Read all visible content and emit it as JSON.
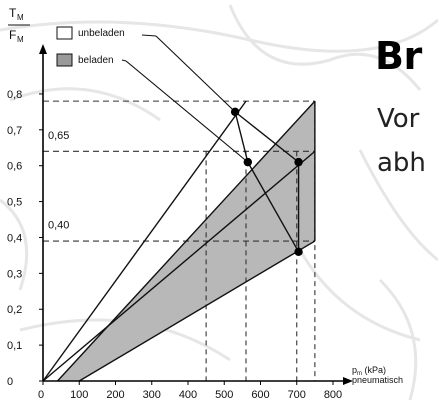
{
  "chart_data": {
    "type": "area",
    "y_axis_label": {
      "numerator": "T",
      "numerator_sub": "M",
      "denominator": "F",
      "denominator_sub": "M"
    },
    "x_axis_label": {
      "symbol": "p",
      "subscript": "m",
      "unit": " (kPa)",
      "line2": "pneumatisch"
    },
    "x_ticks": [
      0,
      100,
      200,
      300,
      400,
      500,
      600,
      700,
      800
    ],
    "y_ticks": [
      "0",
      "0,1",
      "0,2",
      "0,3",
      "0,4",
      "0,5",
      "0,6",
      "0,7",
      "0,8"
    ],
    "xlim": [
      0,
      800
    ],
    "ylim": [
      0,
      0.85
    ],
    "legend": [
      {
        "label": "unbeladen",
        "fill": "#ffffff"
      },
      {
        "label": "beladen",
        "fill": "#9a9a9a"
      }
    ],
    "annotations": [
      {
        "text": "0,65",
        "y": 0.65
      },
      {
        "text": "0,40",
        "y": 0.4
      }
    ],
    "shaded_band": {
      "upper": [
        [
          40,
          0
        ],
        [
          750,
          0.78
        ]
      ],
      "lower": [
        [
          100,
          0
        ],
        [
          750,
          0.39
        ]
      ]
    },
    "lines": [
      {
        "name": "steep",
        "points": [
          [
            0,
            0
          ],
          [
            560,
            0.78
          ]
        ]
      },
      {
        "name": "mid",
        "points": [
          [
            0,
            0
          ],
          [
            750,
            0.64
          ]
        ]
      },
      {
        "name": "upper_edge",
        "points": [
          [
            40,
            0
          ],
          [
            750,
            0.78
          ]
        ]
      },
      {
        "name": "lower_edge",
        "points": [
          [
            100,
            0
          ],
          [
            750,
            0.39
          ]
        ]
      }
    ],
    "reference_lines_horizontal": [
      0.78,
      0.64,
      0.39
    ],
    "reference_lines_vertical": [
      450,
      560,
      700,
      750
    ],
    "points": [
      {
        "x": 530,
        "y": 0.75
      },
      {
        "x": 565,
        "y": 0.61
      },
      {
        "x": 705,
        "y": 0.61
      },
      {
        "x": 705,
        "y": 0.36
      }
    ],
    "connectors": [
      {
        "from": [
          530,
          0.75
        ],
        "to": [
          705,
          0.61
        ]
      },
      {
        "from": [
          565,
          0.61
        ],
        "to": [
          705,
          0.36
        ]
      },
      {
        "from": [
          565,
          0.61
        ],
        "to": [
          530,
          0.75
        ]
      },
      {
        "from": [
          705,
          0.61
        ],
        "to": [
          705,
          0.36
        ]
      }
    ],
    "leaders": [
      {
        "legend_index": 0,
        "to": [
          530,
          0.75
        ]
      },
      {
        "legend_index": 1,
        "to": [
          565,
          0.61
        ]
      }
    ],
    "colors": {
      "band": "#b8b8b8",
      "line": "#111111",
      "dash": "#333333",
      "point": "#000000"
    }
  },
  "slide": {
    "heading": "Br",
    "body_line1": "Vor",
    "body_line2": "abh"
  }
}
